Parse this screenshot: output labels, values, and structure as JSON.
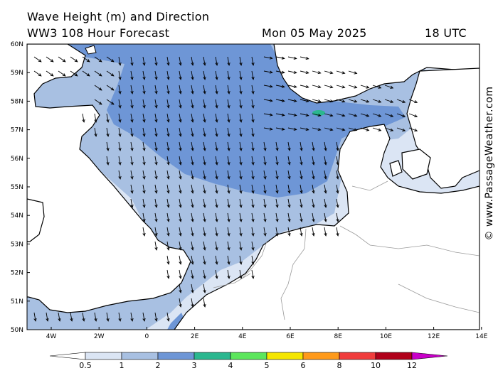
{
  "header": {
    "title_line1": "Wave Height (m) and Direction",
    "title_line2": "WW3 108 Hour Forecast",
    "date": "Mon 05 May 2025",
    "time": "18 UTC"
  },
  "credit": "© www.PassageWeather.com",
  "axes": {
    "lat_labels": [
      "60N",
      "59N",
      "58N",
      "57N",
      "56N",
      "55N",
      "54N",
      "53N",
      "52N",
      "51N",
      "50N"
    ],
    "lon_labels": [
      "4W",
      "2W",
      "0",
      "2E",
      "4E",
      "6E",
      "8E",
      "10E",
      "12E",
      "14E"
    ]
  },
  "legend": {
    "labels": [
      "0.5",
      "1",
      "2",
      "3",
      "4",
      "5",
      "6",
      "8",
      "10",
      "12"
    ],
    "colors": [
      "#ffffff",
      "#dbe5f4",
      "#a8c0e2",
      "#6e96d6",
      "#2bb78f",
      "#5ce65c",
      "#f5e600",
      "#ff9a1a",
      "#f03c3c",
      "#b0001a",
      "#c800c8"
    ]
  },
  "colors": {
    "sea_low": "#dbe5f4",
    "sea_mid": "#a8c0e2",
    "sea_high": "#6e96d6",
    "land": "#ffffff",
    "coast": "#000000",
    "border": "#9a9a9a",
    "arrow": "#000000"
  }
}
